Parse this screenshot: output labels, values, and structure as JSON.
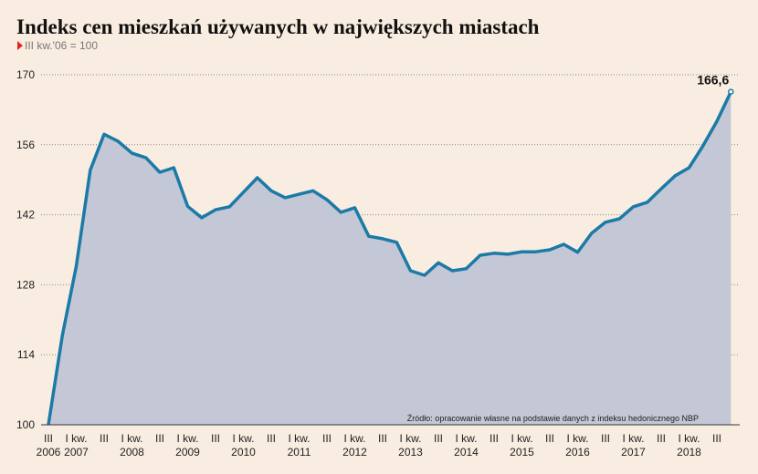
{
  "chart_data": {
    "type": "area",
    "title": "Indeks cen mieszkań używanych w największych miastach",
    "subtitle": "III kw.'06 = 100",
    "source": "Źródło: opracowanie własne na podstawie danych z indeksu hedonicznego NBP",
    "categories": [
      "III",
      null,
      "I kw.",
      null,
      "III",
      null,
      "I kw.",
      null,
      "III",
      null,
      "I kw.",
      null,
      "III",
      null,
      "I kw.",
      null,
      "III",
      null,
      "I kw.",
      null,
      "III",
      null,
      "I kw.",
      null,
      "III",
      null,
      "I kw.",
      null,
      "III",
      null,
      "I kw.",
      null,
      "III",
      null,
      "I kw.",
      null,
      "III",
      null,
      "I kw.",
      null,
      "III",
      null,
      "I kw.",
      null,
      "III",
      null,
      "I kw.",
      null,
      "III",
      null
    ],
    "category_years": [
      "2006",
      null,
      "2007",
      null,
      null,
      null,
      "2008",
      null,
      null,
      null,
      "2009",
      null,
      null,
      null,
      "2010",
      null,
      null,
      null,
      "2011",
      null,
      null,
      null,
      "2012",
      null,
      null,
      null,
      "2013",
      null,
      null,
      null,
      "2014",
      null,
      null,
      null,
      "2015",
      null,
      null,
      null,
      "2016",
      null,
      null,
      null,
      "2017",
      null,
      null,
      null,
      "2018",
      null,
      null,
      null
    ],
    "series": [
      {
        "color": "#1b7aa6",
        "fill": "#c3c7d6",
        "values": [
          100,
          117.9,
          131.7,
          150.9,
          158.1,
          156.7,
          154.3,
          153.4,
          150.5,
          151.4,
          143.7,
          141.4,
          143.0,
          143.6,
          146.5,
          149.4,
          146.8,
          145.4,
          146.1,
          146.8,
          145.0,
          142.5,
          143.4,
          137.7,
          137.2,
          136.5,
          130.8,
          129.9,
          132.4,
          130.8,
          131.2,
          133.9,
          134.3,
          134.1,
          134.6,
          134.6,
          135.0,
          136.1,
          134.5,
          138.3,
          140.5,
          141.2,
          143.6,
          144.5,
          147.2,
          149.8,
          151.4,
          155.8,
          160.7,
          166.6
        ],
        "value_labels": [
          null,
          null,
          null,
          null,
          null,
          null,
          null,
          null,
          null,
          null,
          null,
          null,
          null,
          null,
          null,
          null,
          null,
          null,
          null,
          null,
          null,
          null,
          null,
          null,
          null,
          null,
          null,
          null,
          null,
          null,
          null,
          null,
          null,
          null,
          null,
          null,
          null,
          null,
          null,
          null,
          null,
          null,
          null,
          null,
          null,
          null,
          null,
          null,
          null,
          "166,6"
        ]
      }
    ],
    "ylim": [
      100,
      170
    ],
    "yticks": [
      100,
      114,
      128,
      142,
      156,
      170
    ],
    "grid": true
  }
}
